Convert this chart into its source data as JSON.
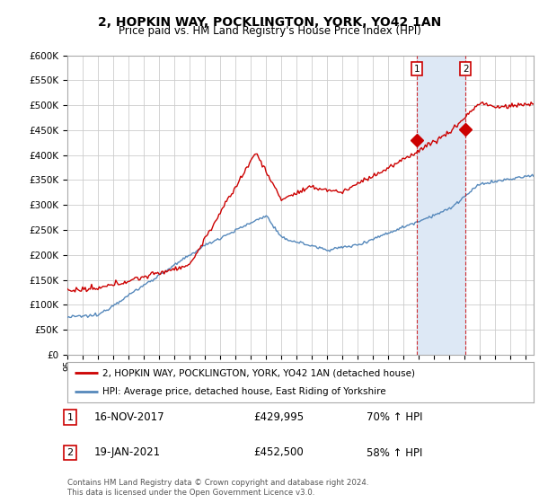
{
  "title": "2, HOPKIN WAY, POCKLINGTON, YORK, YO42 1AN",
  "subtitle": "Price paid vs. HM Land Registry's House Price Index (HPI)",
  "legend_label_red": "2, HOPKIN WAY, POCKLINGTON, YORK, YO42 1AN (detached house)",
  "legend_label_blue": "HPI: Average price, detached house, East Riding of Yorkshire",
  "annotation1_date": "16-NOV-2017",
  "annotation1_price": "£429,995",
  "annotation1_hpi": "70% ↑ HPI",
  "annotation2_date": "19-JAN-2021",
  "annotation2_price": "£452,500",
  "annotation2_hpi": "58% ↑ HPI",
  "footer": "Contains HM Land Registry data © Crown copyright and database right 2024.\nThis data is licensed under the Open Government Licence v3.0.",
  "red_color": "#cc0000",
  "blue_color": "#5588bb",
  "shade_color": "#dde8f5",
  "annotation_box_color": "#cc0000",
  "background_color": "#ffffff",
  "grid_color": "#cccccc",
  "ylim": [
    0,
    600000
  ],
  "yticks": [
    0,
    50000,
    100000,
    150000,
    200000,
    250000,
    300000,
    350000,
    400000,
    450000,
    500000,
    550000,
    600000
  ],
  "ann1_year": 2017.875,
  "ann2_year": 2021.05,
  "ann1_value": 429995,
  "ann2_value": 452500
}
